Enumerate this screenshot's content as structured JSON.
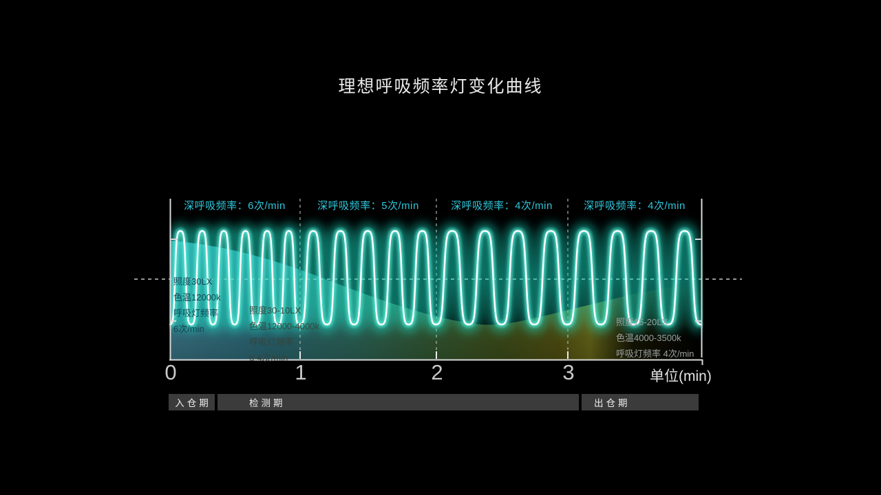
{
  "page": {
    "background_color": "#000000"
  },
  "chart_data": {
    "type": "line",
    "title": "理想呼吸频率灯变化曲线",
    "xlabel": "单位(min)",
    "x_tick_labels": [
      "0",
      "1",
      "2",
      "3"
    ],
    "x_range_min": [
      0,
      4
    ],
    "grid": "dashed section dividers and one horizontal midline",
    "accent_color": "#2fc8dc",
    "wave_stroke_color": "#ffffff",
    "wave_glow_color": "#2ee8cf",
    "sections": [
      {
        "label": "深呼吸频率：6次/min",
        "breaths_per_min": 6,
        "minute_range": [
          0,
          1
        ]
      },
      {
        "label": "深呼吸频率：5次/min",
        "breaths_per_min": 5,
        "minute_range": [
          1,
          2
        ]
      },
      {
        "label": "深呼吸频率：4次/min",
        "breaths_per_min": 4,
        "minute_range": [
          2,
          3
        ]
      },
      {
        "label": "深呼吸频率：4次/min",
        "breaths_per_min": 4,
        "minute_range": [
          3,
          4
        ]
      }
    ],
    "annotations": [
      {
        "lines": [
          "照度30LX",
          "色温12000k",
          "呼吸灯频率",
          "6次/min"
        ]
      },
      {
        "lines": [
          "照度30-10LX",
          "色温12000-4000k",
          "呼吸灯频率",
          "6-4次/min"
        ]
      },
      {
        "lines": [
          "照度15-20LX",
          "色温4000-3500k",
          "呼吸灯频率 4次/min"
        ]
      }
    ]
  },
  "phases": [
    {
      "label": "入仓期"
    },
    {
      "label": "检测期"
    },
    {
      "label": "出仓期"
    }
  ]
}
